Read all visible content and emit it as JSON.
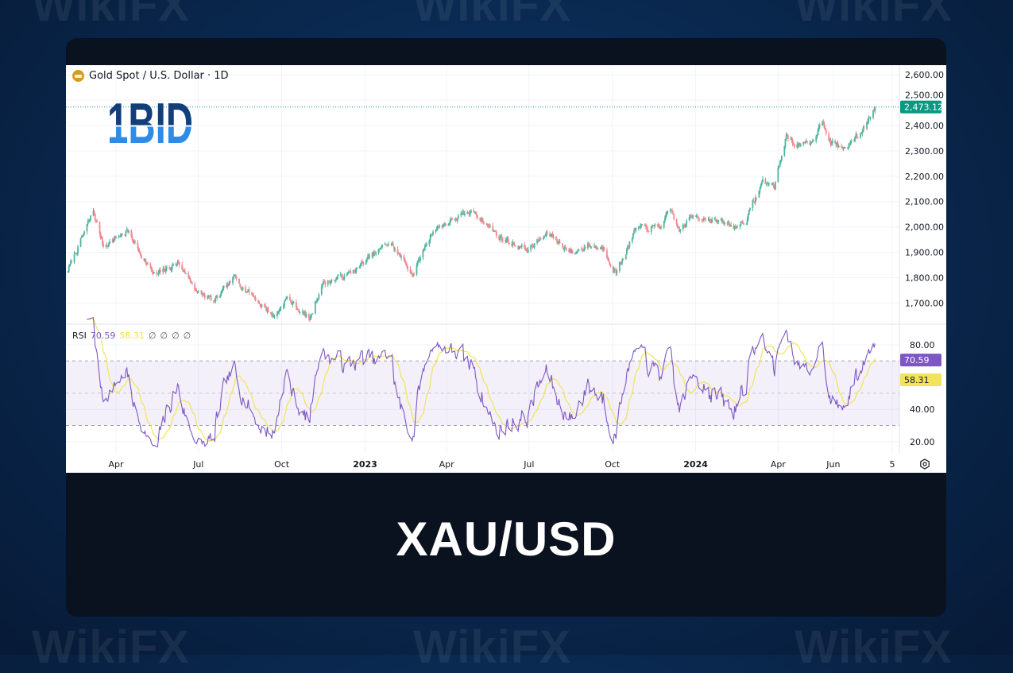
{
  "watermark": "WikiFX",
  "logo": {
    "text": "1BID",
    "top_color": "#123f7a",
    "bottom_color": "#2f8be8"
  },
  "header": {
    "symbol": "Gold Spot / U.S. Dollar · 1D",
    "icon": "gold-bar-icon"
  },
  "rsi_legend": {
    "label": "RSI",
    "value": "70.59",
    "ma_value": "58.31",
    "extra": [
      "∅",
      "∅",
      "∅",
      "∅"
    ]
  },
  "footer_title": "XAU/USD",
  "colors": {
    "up": "#4fb59f",
    "down": "#ef8a8f",
    "last_price": "#089981",
    "rsi": "#7e57c2",
    "rsi_ma": "#f2e35a",
    "rsi_band": "#7e57c2"
  },
  "chart_data": [
    {
      "type": "candlestick",
      "title": "Gold Spot / U.S. Dollar · 1D",
      "y_ticks": [
        "2,600.00",
        "2,500.00",
        "2,400.00",
        "2,300.00",
        "2,200.00",
        "2,100.00",
        "2,000.00",
        "1,900.00",
        "1,800.00",
        "1,700.00"
      ],
      "y_tick_values": [
        2600,
        2500,
        2400,
        2300,
        2200,
        2100,
        2000,
        1900,
        1800,
        1700
      ],
      "ylim": [
        1630,
        2620
      ],
      "last_price": 2473.12,
      "last_price_label": "2,473.12",
      "x_ticks": [
        {
          "label": "Apr",
          "date": "2022-04-01",
          "bold": false
        },
        {
          "label": "Jul",
          "date": "2022-07-01",
          "bold": false
        },
        {
          "label": "Oct",
          "date": "2022-10-01",
          "bold": false
        },
        {
          "label": "2023",
          "date": "2023-01-01",
          "bold": true
        },
        {
          "label": "Apr",
          "date": "2023-04-01",
          "bold": false
        },
        {
          "label": "Jul",
          "date": "2023-07-01",
          "bold": false
        },
        {
          "label": "Oct",
          "date": "2023-10-01",
          "bold": false
        },
        {
          "label": "2024",
          "date": "2024-01-01",
          "bold": true
        },
        {
          "label": "Apr",
          "date": "2024-04-01",
          "bold": false
        },
        {
          "label": "Jun",
          "date": "2024-06-01",
          "bold": false
        },
        {
          "label": "5",
          "date": "2024-08-05",
          "bold": false
        }
      ],
      "xlim": [
        "2022-02-05",
        "2024-08-10"
      ],
      "approx_closes": [
        [
          "2022-02-05",
          1814
        ],
        [
          "2022-03-07",
          2060
        ],
        [
          "2022-03-18",
          1925
        ],
        [
          "2022-04-13",
          1985
        ],
        [
          "2022-05-14",
          1805
        ],
        [
          "2022-06-09",
          1860
        ],
        [
          "2022-07-01",
          1740
        ],
        [
          "2022-07-19",
          1705
        ],
        [
          "2022-08-10",
          1800
        ],
        [
          "2022-09-23",
          1645
        ],
        [
          "2022-10-06",
          1720
        ],
        [
          "2022-11-01",
          1635
        ],
        [
          "2022-11-14",
          1775
        ],
        [
          "2022-12-15",
          1815
        ],
        [
          "2023-01-28",
          1940
        ],
        [
          "2023-02-23",
          1815
        ],
        [
          "2023-03-17",
          1990
        ],
        [
          "2023-04-12",
          2035
        ],
        [
          "2023-05-02",
          2060
        ],
        [
          "2023-05-31",
          1955
        ],
        [
          "2023-06-30",
          1910
        ],
        [
          "2023-07-22",
          1975
        ],
        [
          "2023-08-18",
          1895
        ],
        [
          "2023-09-04",
          1930
        ],
        [
          "2023-09-22",
          1915
        ],
        [
          "2023-10-05",
          1820
        ],
        [
          "2023-10-27",
          1990
        ],
        [
          "2023-11-22",
          2000
        ],
        [
          "2023-12-05",
          2060
        ],
        [
          "2023-12-14",
          1985
        ],
        [
          "2023-12-31",
          2050
        ],
        [
          "2024-01-22",
          2025
        ],
        [
          "2024-02-13",
          2000
        ],
        [
          "2024-02-26",
          2030
        ],
        [
          "2024-03-15",
          2180
        ],
        [
          "2024-03-28",
          2160
        ],
        [
          "2024-04-10",
          2360
        ],
        [
          "2024-04-19",
          2330
        ],
        [
          "2024-05-07",
          2320
        ],
        [
          "2024-05-20",
          2425
        ],
        [
          "2024-05-29",
          2335
        ],
        [
          "2024-06-11",
          2310
        ],
        [
          "2024-06-20",
          2330
        ],
        [
          "2024-07-03",
          2380
        ],
        [
          "2024-07-17",
          2473.12
        ]
      ]
    },
    {
      "type": "line",
      "title": "RSI",
      "series": [
        {
          "name": "RSI",
          "last": 70.59
        },
        {
          "name": "RSI-based MA",
          "last": 58.31
        }
      ],
      "y_ticks": [
        "80.00",
        "40.00",
        "20.00"
      ],
      "y_tick_values": [
        80,
        40,
        20
      ],
      "bands": {
        "upper": 70,
        "middle": 50,
        "lower": 30
      },
      "ylim": [
        14,
        92
      ],
      "last_label": "70.59",
      "ma_last_label": "58.31"
    }
  ]
}
